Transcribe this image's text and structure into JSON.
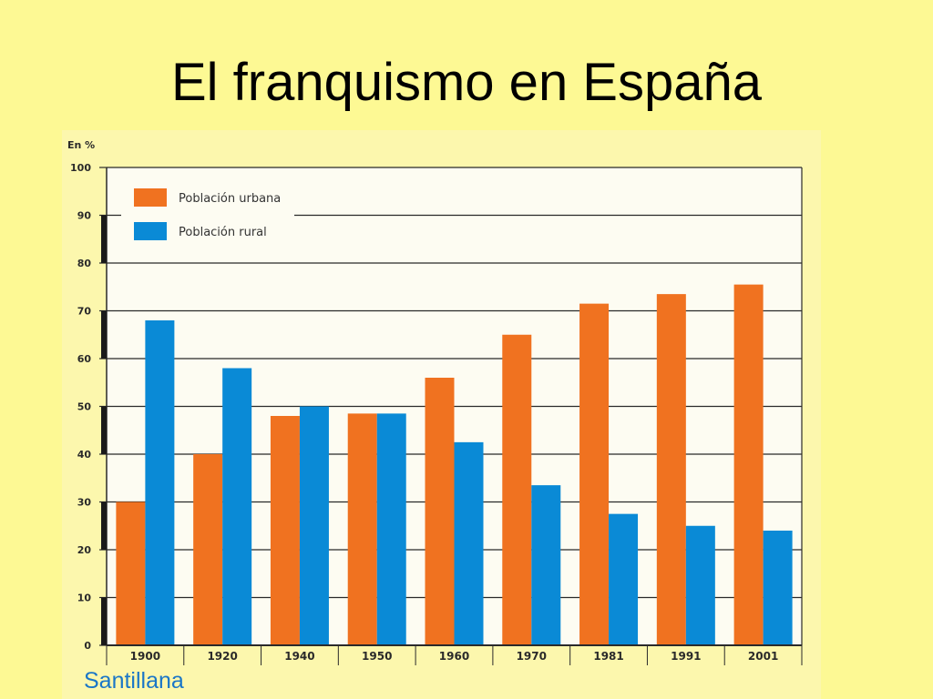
{
  "slide": {
    "title": "El franquismo en España",
    "source": "Santillana"
  },
  "colors": {
    "urban": "#f07220",
    "rural": "#0a8ad6",
    "background": "#fdf994",
    "plot_bg": "#fdfcf2",
    "grid": "#2a2a2a"
  },
  "chart_data": {
    "type": "bar",
    "unit_label": "En %",
    "categories": [
      "1900",
      "1920",
      "1940",
      "1950",
      "1960",
      "1970",
      "1981",
      "1991",
      "2001"
    ],
    "series": [
      {
        "name": "Población urbana",
        "color": "#f07220",
        "values": [
          30,
          40,
          48,
          48.5,
          56,
          65,
          71.5,
          73.5,
          75.5
        ]
      },
      {
        "name": "Población rural",
        "color": "#0a8ad6",
        "values": [
          68,
          58,
          50,
          48.5,
          42.5,
          33.5,
          27.5,
          25,
          24
        ]
      }
    ],
    "yticks": [
      "0",
      "10",
      "20",
      "30",
      "40",
      "50",
      "60",
      "70",
      "80",
      "90",
      "100"
    ],
    "ylim": [
      0,
      100
    ],
    "grid": true,
    "legend_position": "top-left"
  }
}
